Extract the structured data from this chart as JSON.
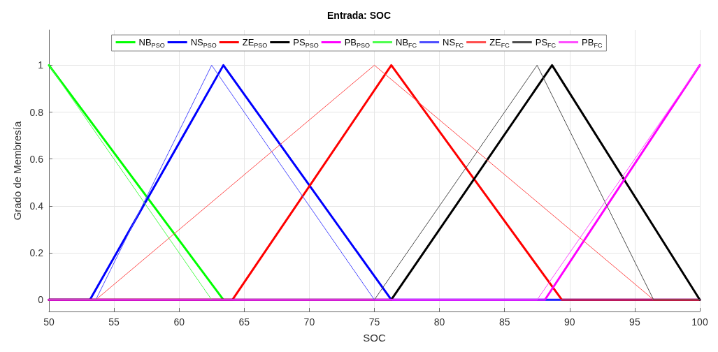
{
  "chart_data": {
    "type": "line",
    "title": "Entrada: SOC",
    "xlabel": "SOC",
    "ylabel": "Grado de Membresía",
    "xlim": [
      50,
      100
    ],
    "xticks": [
      50,
      55,
      60,
      65,
      70,
      75,
      80,
      85,
      90,
      95,
      100
    ],
    "ylim": [
      -0.05,
      1.15
    ],
    "yticks": [
      0,
      0.2,
      0.4,
      0.6,
      0.8,
      1
    ],
    "grid": true,
    "legend": "top",
    "marker": "none",
    "line_style": "solid",
    "series": [
      {
        "name": "NB$_{PSO}$",
        "color": "#00ff00",
        "x": [
          50,
          63.4
        ],
        "values": [
          1,
          0
        ]
      },
      {
        "name": "NS$_{PSO}$",
        "color": "#0000ff",
        "x": [
          50,
          53.15,
          63.4,
          76.3,
          100
        ],
        "values": [
          0,
          0,
          1,
          0,
          0
        ]
      },
      {
        "name": "ZE$_{PSO}$",
        "color": "#ff0000",
        "x": [
          50,
          64.1,
          76.3,
          89.4,
          100
        ],
        "values": [
          0,
          0,
          1,
          0,
          0
        ]
      },
      {
        "name": "PS$_{PSO}$",
        "color": "#000000",
        "x": [
          50,
          76.3,
          88.65,
          100
        ],
        "values": [
          0,
          0,
          1,
          0
        ]
      },
      {
        "name": "PB$_{PSO}$",
        "color": "#ff00ff",
        "x": [
          50,
          88.1,
          100
        ],
        "values": [
          0,
          0,
          1
        ]
      },
      {
        "name": "NB$_{FC}$",
        "color": "#4dff4d",
        "x": [
          50,
          62.5
        ],
        "values": [
          1,
          0
        ]
      },
      {
        "name": "NS$_{FC}$",
        "color": "#4d4dff",
        "x": [
          50,
          53.6,
          62.5,
          75,
          100
        ],
        "values": [
          0,
          0,
          1,
          0,
          0
        ]
      },
      {
        "name": "ZE$_{FC}$",
        "color": "#ff4d4d",
        "x": [
          50,
          53.6,
          75,
          96.45,
          100
        ],
        "values": [
          0,
          0,
          1,
          0,
          0
        ]
      },
      {
        "name": "PS$_{FC}$",
        "color": "#4d4d4d",
        "x": [
          50,
          75,
          87.5,
          96.45,
          100
        ],
        "values": [
          0,
          0,
          1,
          0,
          0
        ]
      },
      {
        "name": "PB$_{FC}$",
        "color": "#ff4dff",
        "x": [
          50,
          87.5,
          100
        ],
        "values": [
          0,
          0,
          1
        ]
      }
    ]
  }
}
